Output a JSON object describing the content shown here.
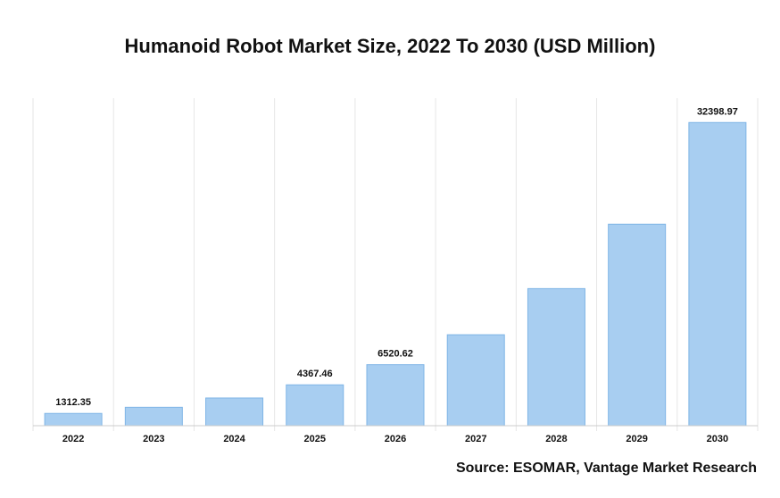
{
  "title": "Humanoid Robot Market Size, 2022 To 2030 (USD Million)",
  "source": "Source: ESOMAR, Vantage Market Research",
  "colors": {
    "bar": "#a8cef1",
    "bar_stroke": "#7fb5e6",
    "grid": "#e6e6e6",
    "axis": "#cccccc"
  },
  "chart_data": {
    "type": "bar",
    "categories": [
      "2022",
      "2023",
      "2024",
      "2025",
      "2026",
      "2027",
      "2028",
      "2029",
      "2030"
    ],
    "values": [
      1312.35,
      1970,
      2960,
      4367.46,
      6520.62,
      9720,
      14650,
      21530,
      32398.97
    ],
    "data_labels": [
      "1312.35",
      "",
      "",
      "4367.46",
      "6520.62",
      "",
      "",
      "",
      "32398.97"
    ],
    "ylim": [
      0,
      35000
    ],
    "grid": "vertical",
    "legend": "none"
  }
}
